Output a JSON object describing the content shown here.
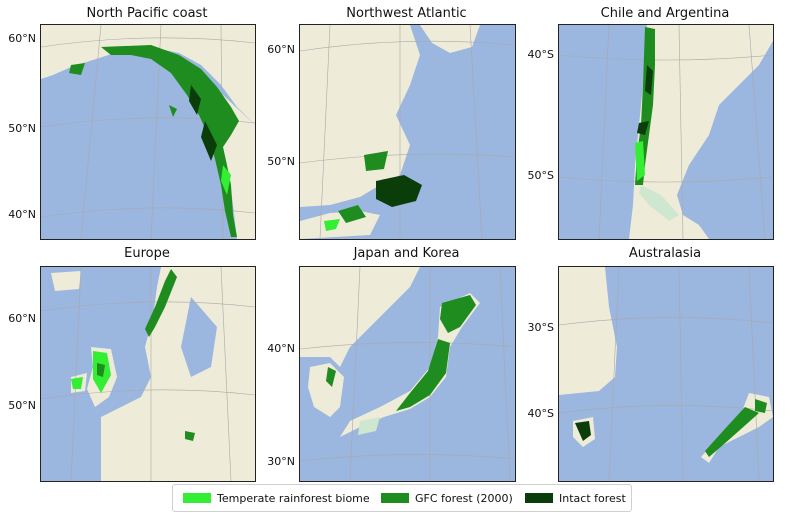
{
  "panels": [
    {
      "title": "North Pacific coast",
      "lat_labels": [
        "60°N",
        "50°N",
        "40°N"
      ]
    },
    {
      "title": "Northwest Atlantic",
      "lat_labels": [
        "60°N",
        "50°N"
      ]
    },
    {
      "title": "Chile and Argentina",
      "lat_labels": [
        "40°S",
        "50°S"
      ]
    },
    {
      "title": "Europe",
      "lat_labels": [
        "60°N",
        "50°N"
      ]
    },
    {
      "title": "Japan and Korea",
      "lat_labels": [
        "40°N",
        "30°N"
      ]
    },
    {
      "title": "Australasia",
      "lat_labels": [
        "30°S",
        "40°S"
      ]
    }
  ],
  "legend": {
    "items": [
      {
        "label": "Temperate rainforest biome",
        "color": "#33ee33"
      },
      {
        "label": "GFC forest (2000)",
        "color": "#1e8c1e"
      },
      {
        "label": "Intact forest",
        "color": "#0a3d0a"
      }
    ]
  },
  "colors": {
    "ocean": "#9bb6df",
    "land": "#efebd9",
    "grid": "#a9a9a9"
  }
}
